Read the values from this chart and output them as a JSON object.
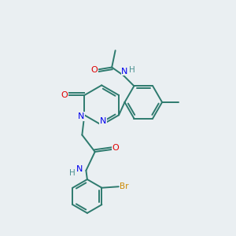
{
  "background_color": "#eaeff2",
  "bond_color": "#2d7a6e",
  "atom_colors": {
    "O": "#dd0000",
    "N": "#0000ee",
    "H": "#4a9090",
    "Br": "#cc8800",
    "C": "#2d7a6e"
  },
  "figsize": [
    3.0,
    3.0
  ],
  "dpi": 100
}
